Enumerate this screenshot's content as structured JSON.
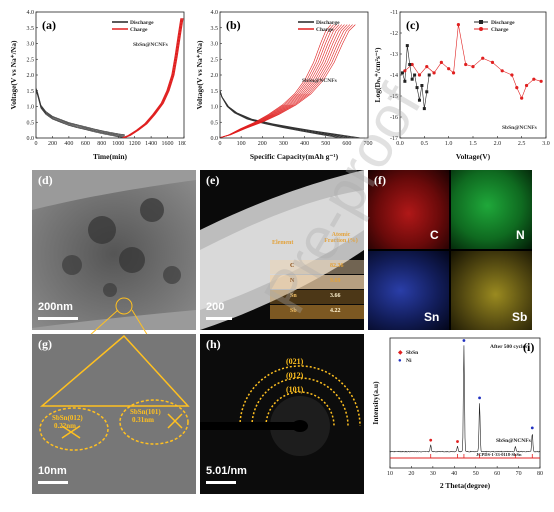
{
  "panels": {
    "a": {
      "letter": "(a)",
      "xlabel": "Time(min)",
      "ylabel": "Voltage(V vs Na⁺/Na)",
      "sample": "SbSn@NCNFs",
      "xticks": [
        "0",
        "200",
        "400",
        "600",
        "800",
        "1000",
        "1200",
        "1400",
        "1600",
        "1800"
      ],
      "yticks": [
        "0.0",
        "0.5",
        "1.0",
        "1.5",
        "2.0",
        "2.5",
        "3.0",
        "3.5",
        "4.0"
      ],
      "legend": [
        "Discharge",
        "Charge"
      ]
    },
    "b": {
      "letter": "(b)",
      "xlabel": "Specific Capacity(mAh g⁻¹)",
      "ylabel": "Voltage(V vs Na⁺/Na)",
      "sample": "SbSn@NCNFs",
      "xticks": [
        "0",
        "100",
        "200",
        "300",
        "400",
        "500",
        "600",
        "700"
      ],
      "yticks": [
        "0.0",
        "0.5",
        "1.0",
        "1.5",
        "2.0",
        "2.5",
        "3.0",
        "3.5",
        "4.0"
      ],
      "legend": [
        "Discharge",
        "Charge"
      ]
    },
    "c": {
      "letter": "(c)",
      "xlabel": "Voltage(V)",
      "ylabel": "Log(Dₙₐ⁺/cm²s⁻¹)",
      "sample": "SbSn@NCNFs",
      "xticks": [
        "0.0",
        "0.5",
        "1.0",
        "1.5",
        "2.0",
        "2.5",
        "3.0"
      ],
      "yticks": [
        "-11",
        "-12",
        "-13",
        "-14",
        "-15",
        "-16",
        "-17"
      ],
      "legend": [
        "Discharge",
        "Charge"
      ]
    },
    "d": {
      "letter": "(d)",
      "scale": "200nm"
    },
    "e": {
      "letter": "(e)",
      "scale": "200",
      "table": {
        "headers": [
          "Element",
          "Atomic Fraction (%)"
        ],
        "rows": [
          [
            "C",
            "82.36"
          ],
          [
            "N",
            "9.69"
          ],
          [
            "Sn",
            "3.66"
          ],
          [
            "Sb",
            "4.22"
          ]
        ]
      }
    },
    "f": {
      "letter": "(f)",
      "maps": [
        "C",
        "N",
        "Sn",
        "Sb"
      ]
    },
    "g": {
      "letter": "(g)",
      "scale": "10nm",
      "labels": [
        {
          "line1": "SbSn(012)",
          "line2": "0.22nm"
        },
        {
          "line1": "SbSn(101)",
          "line2": "0.31nm"
        }
      ]
    },
    "h": {
      "letter": "(h)",
      "scale": "5.01/nm",
      "rings": [
        "(021)",
        "(012)",
        "(101)"
      ]
    },
    "i": {
      "letter": "(i)",
      "xlabel": "2 Theta(degree)",
      "ylabel": "Intensity(a.u)",
      "note": "After 500 cycles",
      "legend": [
        "SbSn",
        "Ni"
      ],
      "sample": "SbSn@NCNFs",
      "ref": "JCPDS-1-33-0118-SbSn",
      "xticks": [
        "10",
        "20",
        "30",
        "40",
        "50",
        "60",
        "70",
        "80"
      ]
    }
  },
  "watermark": "Pre-proof",
  "chart_data": [
    {
      "type": "line",
      "panel": "a",
      "xlabel": "Time(min)",
      "ylabel": "Voltage(V vs Na⁺/Na)",
      "xlim": [
        0,
        1800
      ],
      "ylim": [
        0,
        4
      ],
      "series": [
        {
          "name": "Discharge",
          "x": [
            0,
            20,
            60,
            120,
            200,
            300,
            400,
            500,
            600,
            700,
            800,
            900,
            1000,
            1080
          ],
          "y": [
            1.5,
            1.35,
            0.95,
            0.75,
            0.6,
            0.5,
            0.4,
            0.33,
            0.27,
            0.2,
            0.14,
            0.09,
            0.04,
            0.01
          ]
        },
        {
          "name": "Charge",
          "x": [
            1080,
            1150,
            1250,
            1350,
            1450,
            1550,
            1620,
            1680,
            1720,
            1760,
            1790
          ],
          "y": [
            0.01,
            0.08,
            0.25,
            0.45,
            0.75,
            1.1,
            1.5,
            2.0,
            2.6,
            3.3,
            3.8
          ]
        }
      ]
    },
    {
      "type": "line",
      "panel": "b",
      "xlabel": "Specific Capacity(mAh g⁻¹)",
      "ylabel": "Voltage(V vs Na⁺/Na)",
      "xlim": [
        0,
        700
      ],
      "ylim": [
        0,
        4
      ],
      "series": [
        {
          "name": "Discharge",
          "x": [
            0,
            10,
            40,
            80,
            150,
            250,
            350,
            450,
            550,
            620,
            660
          ],
          "y": [
            1.5,
            1.3,
            1.0,
            0.8,
            0.6,
            0.45,
            0.33,
            0.22,
            0.12,
            0.05,
            0.01
          ]
        },
        {
          "name": "Charge",
          "x": [
            0,
            50,
            120,
            200,
            280,
            360,
            430,
            490,
            540,
            580,
            610,
            640
          ],
          "y": [
            0.01,
            0.1,
            0.3,
            0.5,
            0.75,
            1.05,
            1.4,
            1.85,
            2.4,
            3.0,
            3.4,
            3.6
          ]
        }
      ]
    },
    {
      "type": "scatter",
      "panel": "c",
      "xlabel": "Voltage(V)",
      "ylabel": "Log(Dₙₐ⁺/cm²s⁻¹)",
      "xlim": [
        0,
        3
      ],
      "ylim": [
        -17,
        -11
      ],
      "series": [
        {
          "name": "Discharge",
          "x": [
            0.05,
            0.1,
            0.15,
            0.2,
            0.25,
            0.3,
            0.35,
            0.4,
            0.45,
            0.5,
            0.55,
            0.6
          ],
          "y": [
            -13.9,
            -14.3,
            -12.6,
            -13.5,
            -14.2,
            -14.0,
            -14.6,
            -15.2,
            -14.5,
            -15.6,
            -14.8,
            -14.0
          ]
        },
        {
          "name": "Charge",
          "x": [
            0.1,
            0.25,
            0.4,
            0.55,
            0.7,
            0.85,
            1.0,
            1.1,
            1.2,
            1.35,
            1.5,
            1.7,
            1.9,
            2.1,
            2.3,
            2.4,
            2.5,
            2.6,
            2.75,
            2.9
          ],
          "y": [
            -13.8,
            -13.5,
            -14.0,
            -13.6,
            -13.9,
            -13.4,
            -13.7,
            -13.9,
            -11.6,
            -13.5,
            -13.6,
            -13.2,
            -13.4,
            -13.8,
            -14.0,
            -14.6,
            -15.1,
            -14.5,
            -14.2,
            -14.3
          ]
        }
      ]
    },
    {
      "type": "line",
      "panel": "i",
      "xlabel": "2 Theta(degree)",
      "ylabel": "Intensity(a.u)",
      "xlim": [
        10,
        80
      ],
      "series": [
        {
          "name": "SbSn@NCNFs",
          "peaks": [
            [
              29,
              0.05
            ],
            [
              41.5,
              0.04
            ],
            [
              44.5,
              0.78
            ],
            [
              51.8,
              0.36
            ],
            [
              68.5,
              0.04
            ],
            [
              76.4,
              0.14
            ]
          ]
        }
      ]
    }
  ]
}
